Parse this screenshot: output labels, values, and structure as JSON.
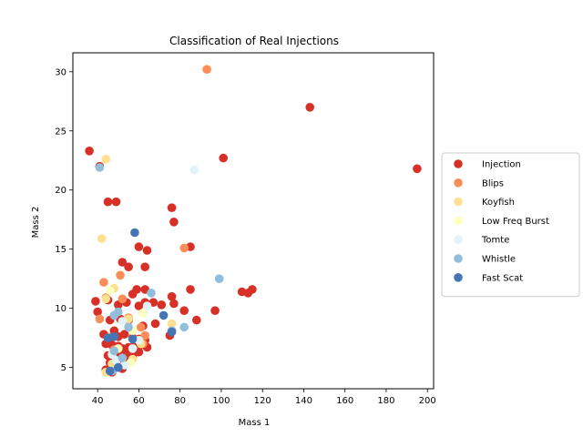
{
  "chart_data": {
    "type": "scatter",
    "title": "Classification of Real Injections",
    "xlabel": "Mass 1",
    "ylabel": "Mass 2",
    "xlim": [
      28,
      203
    ],
    "ylim": [
      3.2,
      31.6
    ],
    "xticks": [
      40,
      60,
      80,
      100,
      120,
      140,
      160,
      180,
      200
    ],
    "yticks": [
      5,
      10,
      15,
      20,
      25,
      30
    ],
    "grid": false,
    "legend_position": "right",
    "series": [
      {
        "name": "Injection",
        "color": "#d73027",
        "points": [
          [
            36,
            23.3
          ],
          [
            41,
            22
          ],
          [
            45,
            19
          ],
          [
            49,
            19
          ],
          [
            143,
            27
          ],
          [
            101,
            22.7
          ],
          [
            195,
            21.8
          ],
          [
            76,
            18.5
          ],
          [
            77,
            17.3
          ],
          [
            60,
            15.2
          ],
          [
            64,
            14.9
          ],
          [
            85,
            15.2
          ],
          [
            52,
            13.9
          ],
          [
            55,
            13.5
          ],
          [
            63,
            13.5
          ],
          [
            85,
            11.6
          ],
          [
            110,
            11.4
          ],
          [
            113,
            11.3
          ],
          [
            115,
            11.6
          ],
          [
            59,
            11.6
          ],
          [
            63,
            11.6
          ],
          [
            57,
            11.2
          ],
          [
            76,
            11
          ],
          [
            77,
            10.4
          ],
          [
            39,
            10.6
          ],
          [
            45,
            10.7
          ],
          [
            50,
            10.3
          ],
          [
            54,
            10.5
          ],
          [
            60,
            10.2
          ],
          [
            63,
            10.5
          ],
          [
            67,
            10.5
          ],
          [
            71,
            10.3
          ],
          [
            82,
            9.8
          ],
          [
            97,
            9.8
          ],
          [
            40,
            9.7
          ],
          [
            46,
            9
          ],
          [
            51,
            9.1
          ],
          [
            55,
            9
          ],
          [
            62,
            8.5
          ],
          [
            68,
            8.7
          ],
          [
            76,
            8.1
          ],
          [
            75,
            7.7
          ],
          [
            88,
            9
          ],
          [
            43,
            7.8
          ],
          [
            46,
            7.5
          ],
          [
            48,
            8.1
          ],
          [
            50,
            7.6
          ],
          [
            53,
            7.8
          ],
          [
            57,
            7.5
          ],
          [
            60,
            7.4
          ],
          [
            63,
            7.3
          ],
          [
            44,
            7
          ],
          [
            47,
            6.9
          ],
          [
            50,
            6.8
          ],
          [
            52,
            6.6
          ],
          [
            55,
            6.7
          ],
          [
            58,
            7
          ],
          [
            61,
            6.9
          ],
          [
            64,
            6.7
          ],
          [
            45,
            6
          ],
          [
            48,
            6.1
          ],
          [
            51,
            6
          ],
          [
            54,
            6.2
          ],
          [
            57,
            5.9
          ],
          [
            60,
            6.3
          ],
          [
            46,
            5.4
          ],
          [
            49,
            5.2
          ],
          [
            53,
            5.5
          ],
          [
            56,
            5.6
          ],
          [
            44,
            4.8
          ],
          [
            47,
            4.6
          ],
          [
            50,
            5
          ],
          [
            52,
            4.9
          ]
        ]
      },
      {
        "name": "Blips",
        "color": "#fc8d59",
        "points": [
          [
            93,
            30.2
          ],
          [
            82,
            15.1
          ],
          [
            43,
            12.2
          ],
          [
            51,
            12.8
          ],
          [
            44,
            10.9
          ],
          [
            52,
            10.8
          ],
          [
            41,
            9.1
          ],
          [
            55,
            9.2
          ],
          [
            61,
            8.4
          ],
          [
            63,
            7.7
          ],
          [
            62,
            7
          ],
          [
            48,
            6.5
          ]
        ]
      },
      {
        "name": "Koyfish",
        "color": "#fee090",
        "points": [
          [
            44,
            22.6
          ],
          [
            42,
            15.9
          ],
          [
            48,
            11.7
          ],
          [
            44,
            10.8
          ],
          [
            55,
            9.1
          ],
          [
            76,
            8.7
          ],
          [
            61,
            7
          ],
          [
            57,
            5.7
          ],
          [
            47,
            5.3
          ],
          [
            44,
            4.6
          ]
        ]
      },
      {
        "name": "Low Freq Burst",
        "color": "#ffffbf",
        "points": [
          [
            46,
            11.5
          ],
          [
            62,
            9.6
          ],
          [
            57,
            8.1
          ],
          [
            50,
            6.6
          ],
          [
            56,
            5.4
          ]
        ]
      },
      {
        "name": "Tomte",
        "color": "#e0f3f8",
        "points": [
          [
            87,
            21.7
          ],
          [
            64,
            10.2
          ],
          [
            52,
            8.9
          ],
          [
            60,
            7.3
          ],
          [
            57,
            6.6
          ],
          [
            47,
            6.1
          ],
          [
            49,
            5.6
          ],
          [
            53,
            5.2
          ]
        ]
      },
      {
        "name": "Whistle",
        "color": "#91bfdb",
        "points": [
          [
            41,
            21.9
          ],
          [
            99,
            12.5
          ],
          [
            66,
            11.3
          ],
          [
            50,
            9.7
          ],
          [
            48,
            9.4
          ],
          [
            55,
            8.4
          ],
          [
            82,
            8.4
          ],
          [
            76,
            8.1
          ],
          [
            48,
            6.4
          ],
          [
            52,
            5.8
          ],
          [
            47,
            4.7
          ]
        ]
      },
      {
        "name": "Fast Scat",
        "color": "#4575b4",
        "points": [
          [
            58,
            16.4
          ],
          [
            72,
            9.4
          ],
          [
            76,
            8
          ],
          [
            48,
            7.6
          ],
          [
            45,
            7.5
          ],
          [
            57,
            7.4
          ],
          [
            50,
            5
          ],
          [
            46,
            4.7
          ]
        ]
      }
    ]
  }
}
